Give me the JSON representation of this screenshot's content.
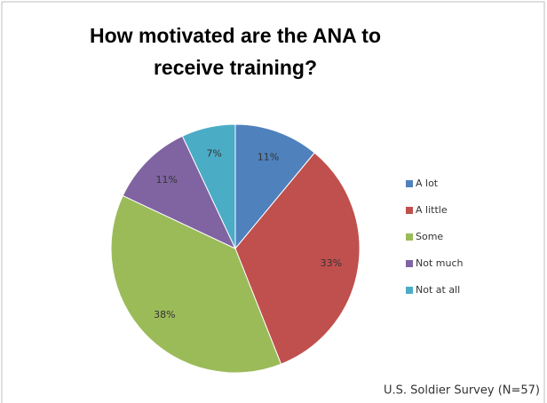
{
  "chart_data": {
    "type": "pie",
    "title": "How motivated are the ANA to receive training?",
    "categories": [
      "A lot",
      "A little",
      "Some",
      "Not much",
      "Not at all"
    ],
    "values": [
      11,
      33,
      38,
      11,
      7
    ],
    "value_labels": [
      "11%",
      "33%",
      "38%",
      "11%",
      "7%"
    ],
    "colors": [
      "#4f81bd",
      "#c0504d",
      "#9bbb59",
      "#8064a2",
      "#4bacc6"
    ],
    "legend": "right",
    "annotation": "U.S. Soldier Survey (N=57)"
  }
}
